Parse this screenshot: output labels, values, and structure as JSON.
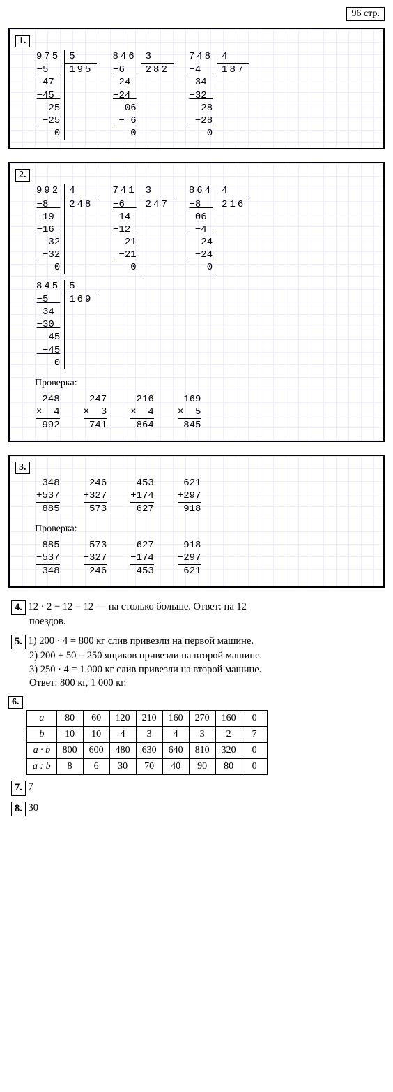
{
  "page_number": "96 стр.",
  "panel1": {
    "label": "1.",
    "problems": [
      {
        "dividend": "975",
        "divisor": "5",
        "quotient": "195",
        "steps": [
          "−5  ",
          " 47 ",
          "−45 ",
          "  25",
          " −25",
          "   0"
        ]
      },
      {
        "dividend": "846",
        "divisor": "3",
        "quotient": "282",
        "steps": [
          "−6  ",
          " 24 ",
          "−24 ",
          "  06",
          " − 6",
          "   0"
        ]
      },
      {
        "dividend": "748",
        "divisor": "4",
        "quotient": "187",
        "steps": [
          "−4  ",
          " 34 ",
          "−32 ",
          "  28",
          " −28",
          "   0"
        ]
      }
    ]
  },
  "panel2": {
    "label": "2.",
    "problems": [
      {
        "dividend": "992",
        "divisor": "4",
        "quotient": "248",
        "steps": [
          "−8  ",
          " 19 ",
          "−16 ",
          "  32",
          " −32",
          "   0"
        ]
      },
      {
        "dividend": "741",
        "divisor": "3",
        "quotient": "247",
        "steps": [
          "−6  ",
          " 14 ",
          "−12 ",
          "  21",
          " −21",
          "   0"
        ]
      },
      {
        "dividend": "864",
        "divisor": "4",
        "quotient": "216",
        "steps": [
          "−8  ",
          " 06 ",
          " −4 ",
          "  24",
          " −24",
          "   0"
        ]
      },
      {
        "dividend": "845",
        "divisor": "5",
        "quotient": "169",
        "steps": [
          "−5  ",
          " 34 ",
          "−30 ",
          "  45",
          " −45",
          "   0"
        ]
      }
    ],
    "check_label": "Проверка:",
    "checks": [
      {
        "a": "248",
        "b": "4",
        "r": "992"
      },
      {
        "a": "247",
        "b": "3",
        "r": "741"
      },
      {
        "a": "216",
        "b": "4",
        "r": "864"
      },
      {
        "a": "169",
        "b": "5",
        "r": "845"
      }
    ]
  },
  "panel3": {
    "label": "3.",
    "adds": [
      {
        "a": "348",
        "b": "537",
        "r": "885"
      },
      {
        "a": "246",
        "b": "327",
        "r": "573"
      },
      {
        "a": "453",
        "b": "174",
        "r": "627"
      },
      {
        "a": "621",
        "b": "297",
        "r": "918"
      }
    ],
    "check_label": "Проверка:",
    "subs": [
      {
        "a": "885",
        "b": "537",
        "r": "348"
      },
      {
        "a": "573",
        "b": "327",
        "r": "246"
      },
      {
        "a": "627",
        "b": "174",
        "r": "453"
      },
      {
        "a": "918",
        "b": "297",
        "r": "621"
      }
    ]
  },
  "q4": {
    "label": "4.",
    "text1": "12 · 2 − 12 = 12 — на столько больше. Ответ: на 12",
    "text2": "поездов."
  },
  "q5": {
    "label": "5.",
    "lines": [
      "1) 200 · 4 = 800 кг слив привезли на первой машине.",
      "2) 200 + 50 = 250 ящиков привезли на второй машине.",
      "3) 250 · 4 = 1 000 кг слив привезли на второй машине.",
      "Ответ: 800 кг, 1 000 кг."
    ]
  },
  "q6": {
    "label": "6.",
    "rows": [
      [
        "a",
        "80",
        "60",
        "120",
        "210",
        "160",
        "270",
        "160",
        "0"
      ],
      [
        "b",
        "10",
        "10",
        "4",
        "3",
        "4",
        "3",
        "2",
        "7"
      ],
      [
        "a · b",
        "800",
        "600",
        "480",
        "630",
        "640",
        "810",
        "320",
        "0"
      ],
      [
        "a : b",
        "8",
        "6",
        "30",
        "70",
        "40",
        "90",
        "80",
        "0"
      ]
    ]
  },
  "q7": {
    "label": "7.",
    "ans": "7"
  },
  "q8": {
    "label": "8.",
    "ans": "30"
  }
}
